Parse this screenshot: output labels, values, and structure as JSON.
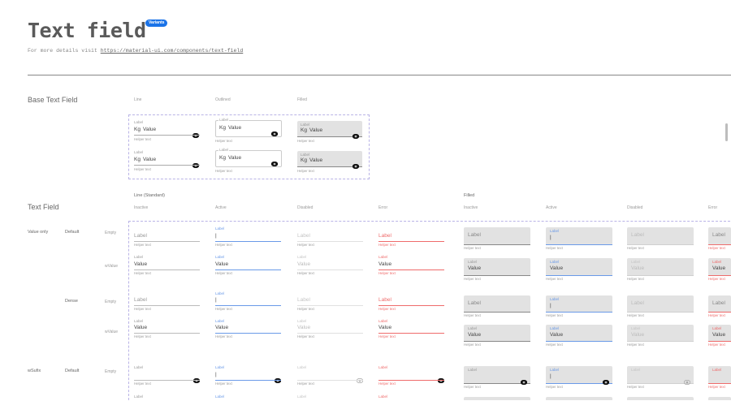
{
  "header": {
    "title": "Text field",
    "badge": "Variants",
    "details_prefix": "For more details visit ",
    "details_link": "https://material-ui.com/components/text-field"
  },
  "colors": {
    "badge": "#1a73e8",
    "active": "#6a9ae8",
    "error": "#ef6b6b",
    "filled_bg": "#e2e2e2",
    "dashed_border": "#b9b3e6"
  },
  "field_text": {
    "label": "Label",
    "value": "Value",
    "helper": "Helper text",
    "cursor": "|",
    "prefix": "Kg",
    "suffix_icon": "eye-icon"
  },
  "base_section": {
    "title": "Base Text Field",
    "columns": [
      "Line",
      "Outlined",
      "Filled"
    ],
    "rows": 2
  },
  "text_field_section": {
    "title": "Text Field",
    "groups": [
      {
        "title": "Line (Standard)",
        "variant": "line",
        "states": [
          "Inactive",
          "Active",
          "Disabled",
          "Error"
        ]
      },
      {
        "title": "Filled",
        "variant": "filled",
        "states": [
          "Inactive",
          "Active",
          "Disabled",
          "Error"
        ]
      }
    ],
    "rows": [
      {
        "type": "Value only",
        "density": "Default",
        "content": "Empty",
        "has_value": false,
        "dense": false,
        "suffix": false
      },
      {
        "type": "",
        "density": "",
        "content": "wValue",
        "has_value": true,
        "dense": false,
        "suffix": false
      },
      {
        "type": "",
        "density": "Dense",
        "content": "Empty",
        "has_value": false,
        "dense": true,
        "suffix": false
      },
      {
        "type": "",
        "density": "",
        "content": "wValue",
        "has_value": true,
        "dense": true,
        "suffix": false
      },
      {
        "type": "wSufix",
        "density": "Default",
        "content": "Empty",
        "has_value": false,
        "dense": false,
        "suffix": true
      },
      {
        "type": "",
        "density": "",
        "content": "",
        "has_value": true,
        "dense": false,
        "suffix": true
      }
    ]
  }
}
